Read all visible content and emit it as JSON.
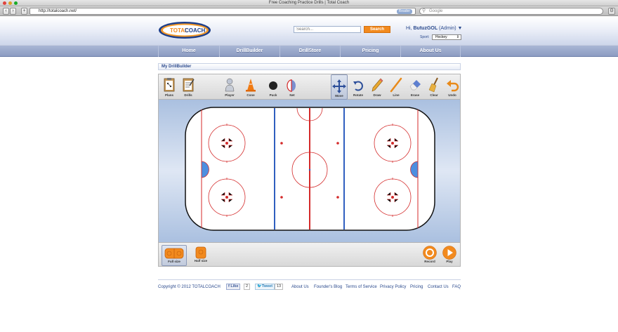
{
  "browser": {
    "window_title": "Free Coaching Practice Drills | Total Coach",
    "url": "http://totalcoach.net/",
    "reader_label": "Reader",
    "search_placeholder": "Google"
  },
  "site": {
    "logo_text_left": "TOTAL",
    "logo_text_right": "COACH",
    "search_placeholder": "Search...",
    "search_button": "Search",
    "greeting_prefix": "Hi, ",
    "username": "ButuzGOL",
    "role": " (Admin) ▼",
    "sport_label": "Sport:",
    "sport_value": "Hockey"
  },
  "nav": {
    "items": [
      {
        "label": "Home"
      },
      {
        "label": "DrillBuilder"
      },
      {
        "label": "DrillStore"
      },
      {
        "label": "Pricing"
      },
      {
        "label": "About Us"
      }
    ]
  },
  "builder": {
    "title": "My DrillBuilder",
    "tools": [
      {
        "label": "Plans",
        "icon": "clipboard-icon"
      },
      {
        "label": "Drills",
        "icon": "drills-board-icon"
      },
      {
        "label": "Player",
        "icon": "player-icon"
      },
      {
        "label": "Cone",
        "icon": "cone-icon"
      },
      {
        "label": "Puck",
        "icon": "puck-icon"
      },
      {
        "label": "Net",
        "icon": "net-icon"
      },
      {
        "label": "Move",
        "icon": "move-icon"
      },
      {
        "label": "Rotate",
        "icon": "rotate-icon"
      },
      {
        "label": "Draw",
        "icon": "pencil-icon"
      },
      {
        "label": "Line",
        "icon": "line-icon"
      },
      {
        "label": "Erase",
        "icon": "eraser-icon"
      },
      {
        "label": "Clear",
        "icon": "broom-icon"
      },
      {
        "label": "Undo",
        "icon": "undo-icon"
      }
    ],
    "active_tool": "Move",
    "sizes": [
      {
        "label": "Full size",
        "icon": "full-rink-icon"
      },
      {
        "label": "Half size",
        "icon": "half-rink-icon"
      }
    ],
    "active_size": "Full size",
    "record_label": "Record",
    "play_label": "Play"
  },
  "footer": {
    "copyright": "Copyright © 2012 TOTALCOACH",
    "like_label": "Like",
    "like_count": "2",
    "tweet_label": "Tweet",
    "tweet_count": "13",
    "links": [
      "About Us",
      "Founder's Blog",
      "Terms of Service",
      "Privacy Policy",
      "Pricing",
      "Contact Us",
      "FAQ"
    ]
  },
  "colors": {
    "brand_blue": "#2b4a8d",
    "accent_orange": "#f28a1e",
    "rink_red": "#d42a2a",
    "rink_blue": "#2f5fbf"
  }
}
